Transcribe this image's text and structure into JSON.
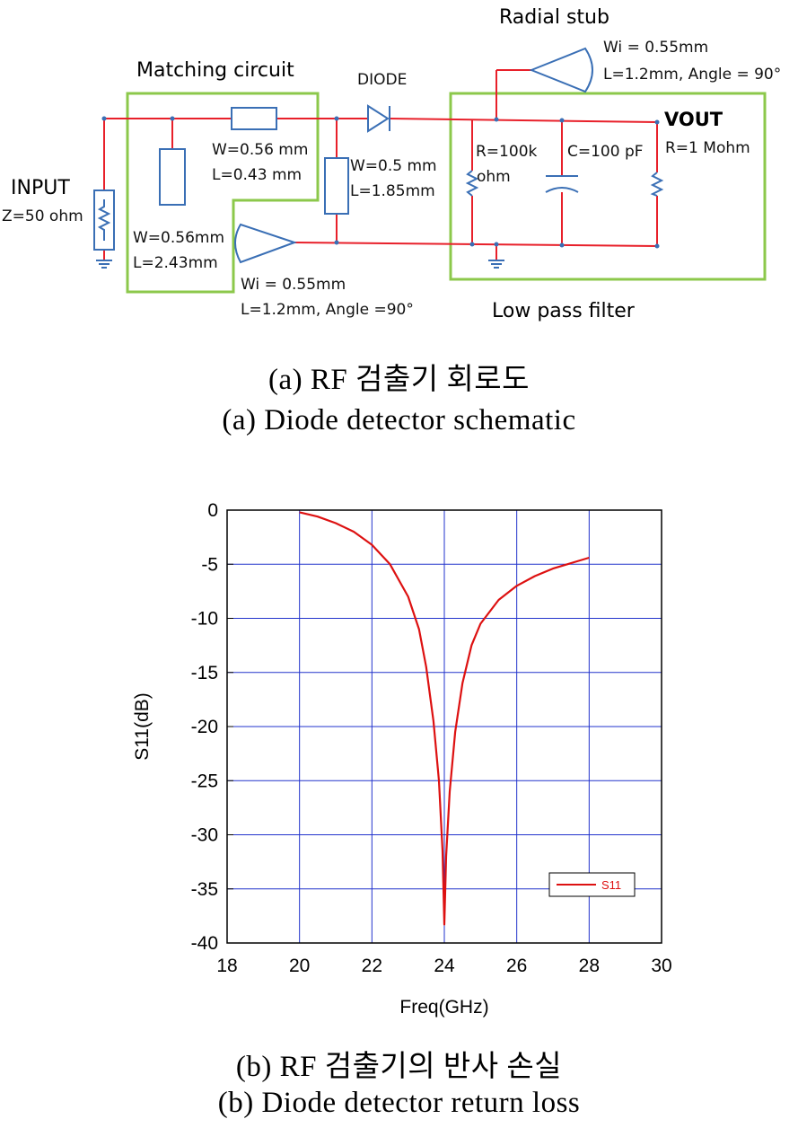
{
  "schematic": {
    "input": {
      "title": "INPUT",
      "impedance": "Z=50 ohm"
    },
    "matching": {
      "title": "Matching circuit",
      "line1": {
        "w": "W=0.56 mm",
        "l": "L=0.43 mm"
      },
      "line2": {
        "w": "W=0.56mm",
        "l": "L=2.43mm"
      }
    },
    "diode": {
      "label": "DIODE"
    },
    "line3": {
      "w": "W=0.5 mm",
      "l": "L=1.85mm"
    },
    "stub_bottom": {
      "wi": "Wi = 0.55mm",
      "l": "L=1.2mm, Angle =90°"
    },
    "stub_top": {
      "title": "Radial stub",
      "wi": "Wi = 0.55mm",
      "l": "L=1.2mm, Angle = 90°"
    },
    "lpf": {
      "title": "Low pass filter",
      "resistor1": {
        "value": "R=100k",
        "unit": "ohm"
      },
      "capacitor": "C=100 pF",
      "resistor2": "R=1 Mohm",
      "vout": "VOUT"
    },
    "colors": {
      "wire": "#e8202a",
      "component": "#3a6fb5",
      "box": "#8cc84b"
    }
  },
  "captions": {
    "a_ko": "(a) RF 검출기 회로도",
    "a_en": "(a) Diode detector schematic",
    "b_ko": "(b) RF 검출기의 반사 손실",
    "b_en": "(b) Diode detector return loss"
  },
  "chart_data": {
    "type": "line",
    "xlabel": "Freq(GHz)",
    "ylabel": "S11(dB)",
    "xlim": [
      18,
      30
    ],
    "ylim": [
      -40,
      0
    ],
    "xticks": [
      18,
      20,
      22,
      24,
      26,
      28,
      30
    ],
    "yticks": [
      0,
      -5,
      -10,
      -15,
      -20,
      -25,
      -30,
      -35,
      -40
    ],
    "grid": true,
    "legend_position": "bottom-right",
    "series": [
      {
        "name": "S11",
        "color": "#dd1111",
        "x": [
          20.0,
          20.5,
          21.0,
          21.5,
          22.0,
          22.5,
          23.0,
          23.3,
          23.5,
          23.7,
          23.85,
          23.95,
          24.0,
          24.05,
          24.15,
          24.3,
          24.5,
          24.75,
          25.0,
          25.5,
          26.0,
          26.5,
          27.0,
          27.5,
          28.0
        ],
        "y": [
          -0.2,
          -0.6,
          -1.2,
          -2.0,
          -3.2,
          -5.0,
          -8.0,
          -11.0,
          -14.5,
          -19.5,
          -25.0,
          -31.5,
          -38.3,
          -32.0,
          -26.0,
          -20.5,
          -16.0,
          -12.5,
          -10.5,
          -8.3,
          -7.0,
          -6.1,
          -5.4,
          -4.9,
          -4.4
        ]
      }
    ]
  }
}
